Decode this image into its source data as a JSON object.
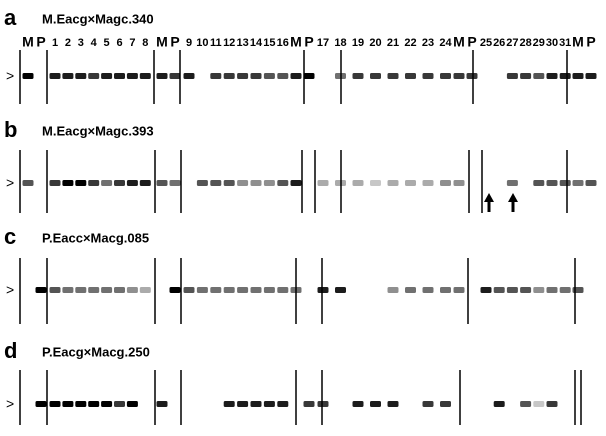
{
  "panels": [
    {
      "letter": "a",
      "title": "M.Eacg×Magc.340",
      "marker": ">"
    },
    {
      "letter": "b",
      "title": "M.Eacg×Magc.393",
      "marker": ">"
    },
    {
      "letter": "c",
      "title": "P.Eacc×Macg.085",
      "marker": ">"
    },
    {
      "letter": "d",
      "title": "P.Eacg×Macg.250",
      "marker": ">"
    }
  ],
  "lanes": [
    "M",
    "P",
    "1",
    "2",
    "3",
    "4",
    "5",
    "6",
    "7",
    "8",
    "M",
    "P",
    "9",
    "10",
    "11",
    "12",
    "13",
    "14",
    "15",
    "16",
    "M",
    "P",
    "17",
    "18",
    "19",
    "20",
    "21",
    "22",
    "23",
    "24",
    "M",
    "P",
    "25",
    "26",
    "27",
    "28",
    "29",
    "30",
    "31",
    "M",
    "P"
  ]
}
